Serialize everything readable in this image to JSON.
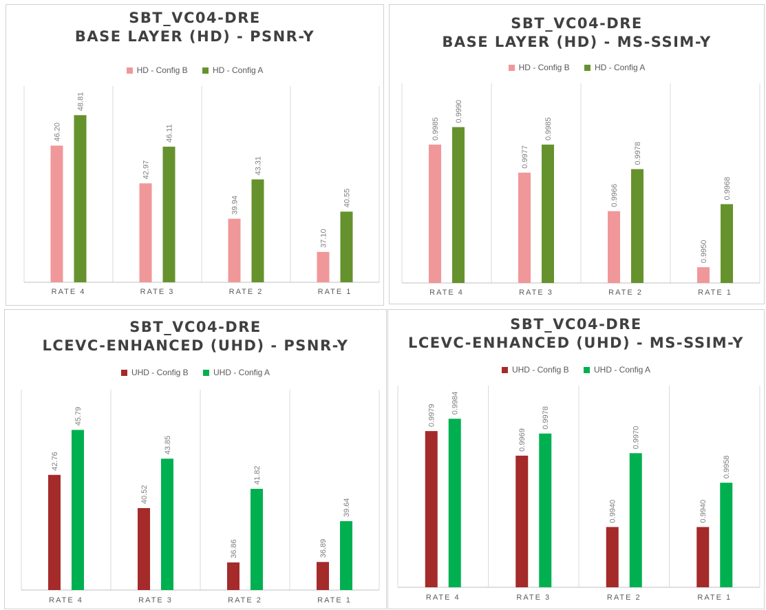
{
  "chart_data": [
    {
      "type": "bar",
      "title_lines": [
        "SBT_VC04-DRE",
        "BASE LAYER (HD) - PSNR-Y"
      ],
      "categories": [
        "RATE 4",
        "RATE 3",
        "RATE 2",
        "RATE 1"
      ],
      "series": [
        {
          "name": "HD - Config B",
          "color": "#f0979a",
          "values": [
            46.2,
            42.97,
            39.94,
            37.1
          ],
          "labels": [
            "46.20",
            "42.97",
            "39.94",
            "37.10"
          ]
        },
        {
          "name": "HD - Config A",
          "color": "#66922e",
          "values": [
            48.81,
            46.11,
            43.31,
            40.55
          ],
          "labels": [
            "48.81",
            "46.11",
            "43.31",
            "40.55"
          ]
        }
      ],
      "ylim": [
        34.5,
        51.3
      ]
    },
    {
      "type": "bar",
      "title_lines": [
        "SBT_VC04-DRE",
        "BASE LAYER (HD) - MS-SSIM-Y"
      ],
      "categories": [
        "RATE 4",
        "RATE 3",
        "RATE 2",
        "RATE 1"
      ],
      "series": [
        {
          "name": "HD - Config B",
          "color": "#f0979a",
          "values": [
            0.9985,
            0.9977,
            0.9966,
            0.995
          ],
          "labels": [
            "0.9985",
            "0.9977",
            "0.9966",
            "0.9950"
          ]
        },
        {
          "name": "HD - Config A",
          "color": "#66922e",
          "values": [
            0.999,
            0.9985,
            0.9978,
            0.9968
          ],
          "labels": [
            "0.9990",
            "0.9985",
            "0.9978",
            "0.9968"
          ]
        }
      ],
      "ylim": [
        0.99455,
        1.00025
      ]
    },
    {
      "type": "bar",
      "title_lines": [
        "SBT_VC04-DRE",
        "LCEVC-ENHANCED (UHD) - PSNR-Y"
      ],
      "categories": [
        "RATE 4",
        "RATE 3",
        "RATE 2",
        "RATE 1"
      ],
      "series": [
        {
          "name": "UHD - Config B",
          "color": "#a52a2a",
          "values": [
            42.76,
            40.52,
            36.86,
            36.89
          ],
          "labels": [
            "42.76",
            "40.52",
            "36.86",
            "36.89"
          ]
        },
        {
          "name": "UHD - Config A",
          "color": "#00b050",
          "values": [
            45.79,
            43.85,
            41.82,
            39.64
          ],
          "labels": [
            "45.79",
            "43.85",
            "41.82",
            "39.64"
          ]
        }
      ],
      "ylim": [
        35.0,
        48.5
      ]
    },
    {
      "type": "bar",
      "title_lines": [
        "SBT_VC04-DRE",
        "LCEVC-ENHANCED (UHD) - MS-SSIM-Y"
      ],
      "categories": [
        "RATE 4",
        "RATE 3",
        "RATE 2",
        "RATE 1"
      ],
      "series": [
        {
          "name": "UHD - Config B",
          "color": "#a52a2a",
          "values": [
            0.9979,
            0.9969,
            0.994,
            0.994
          ],
          "labels": [
            "0.9979",
            "0.9969",
            "0.9940",
            "0.9940"
          ]
        },
        {
          "name": "UHD - Config A",
          "color": "#00b050",
          "values": [
            0.9984,
            0.9978,
            0.997,
            0.9958
          ],
          "labels": [
            "0.9984",
            "0.9978",
            "0.9970",
            "0.9958"
          ]
        }
      ],
      "ylim": [
        0.99155,
        0.99975
      ]
    }
  ]
}
